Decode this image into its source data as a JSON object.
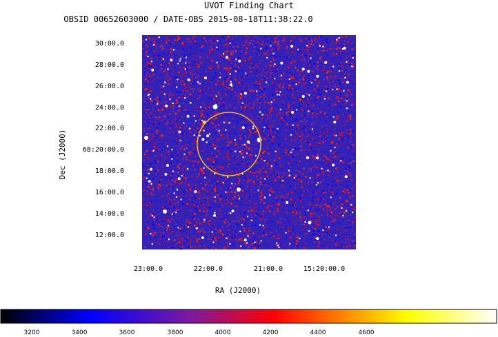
{
  "chart_data": {
    "type": "heatmap",
    "title": "UVOT Finding Chart",
    "subtitle": "OBSID 00652603000 / DATE-OBS 2015-08-18T11:38:22.0",
    "xlabel": "RA (J2000)",
    "ylabel": "Dec (J2000)",
    "x_ticks": [
      "23:00.0",
      "22:00.0",
      "21:00.0",
      "15:20:00.0"
    ],
    "y_ticks": [
      "30:00.0",
      "28:00.0",
      "26:00.0",
      "24:00.0",
      "22:00.0",
      "68:20:00.0",
      "18:00.0",
      "16:00.0",
      "14:00.0",
      "12:00.0"
    ],
    "colorbar": {
      "ticks": [
        "3200",
        "3400",
        "3600",
        "3800",
        "4000",
        "4200",
        "4400",
        "4600"
      ],
      "colors": [
        "#000000",
        "#0000ff",
        "#ff0000",
        "#ffff00",
        "#ffffff"
      ]
    },
    "image_colors": {
      "background": "#3222b8",
      "noise": [
        "#0a0ae6",
        "#2a1ad0",
        "#5a1aa0",
        "#a01a5a",
        "#d81830",
        "#ff2a00"
      ],
      "sources": "#ffffff"
    },
    "marker": {
      "shape": "circle",
      "color": "#ffb000"
    },
    "grid": false
  }
}
